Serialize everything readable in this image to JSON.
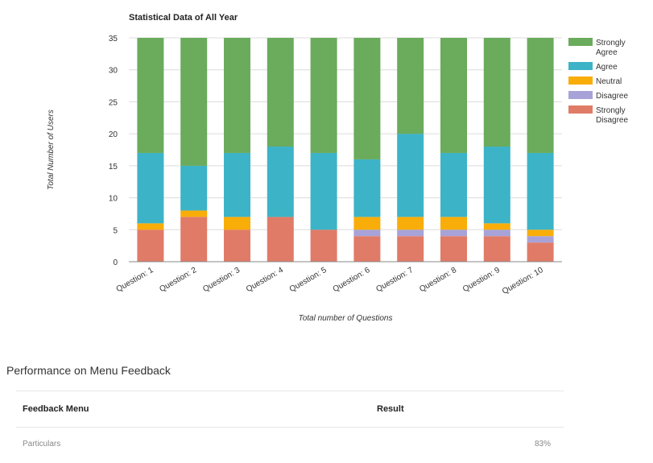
{
  "chart_data": {
    "type": "bar",
    "stacked": true,
    "title": "Statistical Data of All Year",
    "xlabel": "Total number of Questions",
    "ylabel": "Total Number of Users",
    "ylim": [
      0,
      35
    ],
    "yticks": [
      0,
      5,
      10,
      15,
      20,
      25,
      30,
      35
    ],
    "grid": true,
    "legend_position": "right",
    "categories": [
      "Question: 1",
      "Question: 2",
      "Question: 3",
      "Question: 4",
      "Question: 5",
      "Question: 6",
      "Question: 7",
      "Question: 8",
      "Question: 9",
      "Question: 10"
    ],
    "series": [
      {
        "name": "Strongly Disagree",
        "color": "#e07b67",
        "values": [
          5,
          7,
          5,
          7,
          5,
          4,
          4,
          4,
          4,
          3
        ]
      },
      {
        "name": "Disagree",
        "color": "#a7a3d8",
        "values": [
          0,
          0,
          0,
          0,
          0,
          1,
          1,
          1,
          1,
          1
        ]
      },
      {
        "name": "Neutral",
        "color": "#f9ad09",
        "values": [
          1,
          1,
          2,
          0,
          0,
          2,
          2,
          2,
          1,
          1
        ]
      },
      {
        "name": "Agree",
        "color": "#3cb3c7",
        "values": [
          11,
          7,
          10,
          11,
          12,
          9,
          13,
          10,
          12,
          12
        ]
      },
      {
        "name": "Strongly Agree",
        "color": "#6aab5c",
        "values": [
          18,
          20,
          18,
          17,
          18,
          19,
          15,
          18,
          17,
          18
        ]
      }
    ],
    "legend_order": [
      "Strongly Agree",
      "Agree",
      "Neutral",
      "Disagree",
      "Strongly Disagree"
    ]
  },
  "performance": {
    "title": "Performance on Menu Feedback",
    "headers": {
      "menu": "Feedback Menu",
      "result": "Result"
    },
    "rows": [
      {
        "menu": "Particulars",
        "result": "83%"
      }
    ]
  }
}
